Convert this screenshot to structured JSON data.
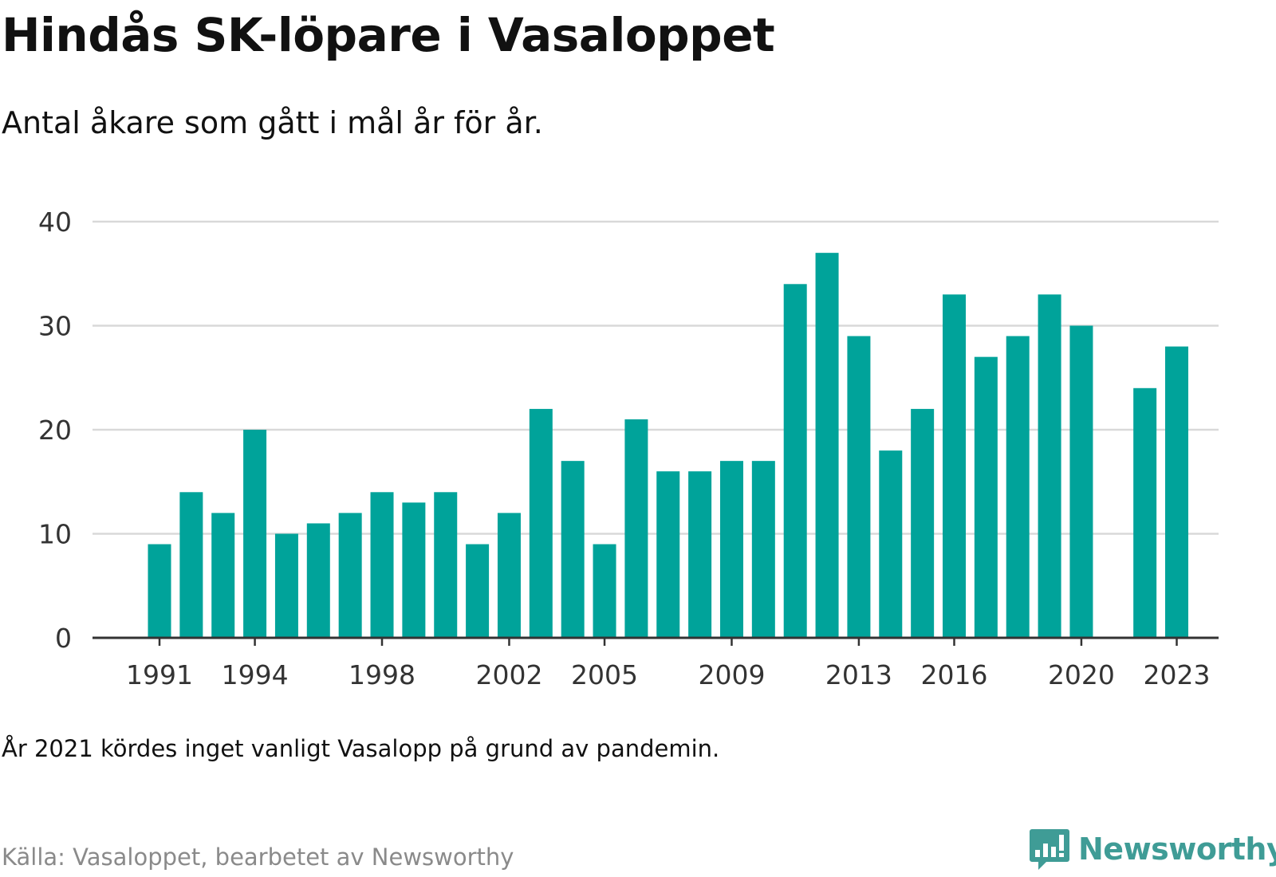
{
  "title": "Hindås SK-löpare i Vasaloppet",
  "subtitle": "Antal åkare som gått i mål år för år.",
  "note": "År 2021 kördes inget vanligt Vasalopp på grund av pandemin.",
  "source": "Källa: Vasaloppet, bearbetet av Newsworthy",
  "brand": {
    "name": "Newsworthy",
    "icon": "bar-chart-speech-bubble-icon"
  },
  "colors": {
    "bar": "#00a39a",
    "grid": "#d9d9d9",
    "axis": "#333333",
    "brand": "#3f9c96"
  },
  "chart_data": {
    "type": "bar",
    "categories": [
      "1991",
      "1992",
      "1993",
      "1994",
      "1995",
      "1996",
      "1997",
      "1998",
      "1999",
      "2000",
      "2001",
      "2002",
      "2003",
      "2004",
      "2005",
      "2006",
      "2007",
      "2008",
      "2009",
      "2010",
      "2011",
      "2012",
      "2013",
      "2014",
      "2015",
      "2016",
      "2017",
      "2018",
      "2019",
      "2020",
      "2021",
      "2022",
      "2023"
    ],
    "values": [
      9,
      14,
      12,
      20,
      10,
      11,
      12,
      14,
      13,
      14,
      9,
      12,
      22,
      17,
      9,
      21,
      16,
      16,
      17,
      17,
      34,
      37,
      29,
      18,
      22,
      33,
      27,
      29,
      33,
      30,
      null,
      24,
      28
    ],
    "xticks": [
      "1991",
      "1994",
      "1998",
      "2002",
      "2005",
      "2009",
      "2013",
      "2016",
      "2020",
      "2023"
    ],
    "yticks": [
      0,
      10,
      20,
      30,
      40
    ],
    "ylim": [
      0,
      40
    ],
    "xlabel": "",
    "ylabel": "",
    "grid": true
  }
}
